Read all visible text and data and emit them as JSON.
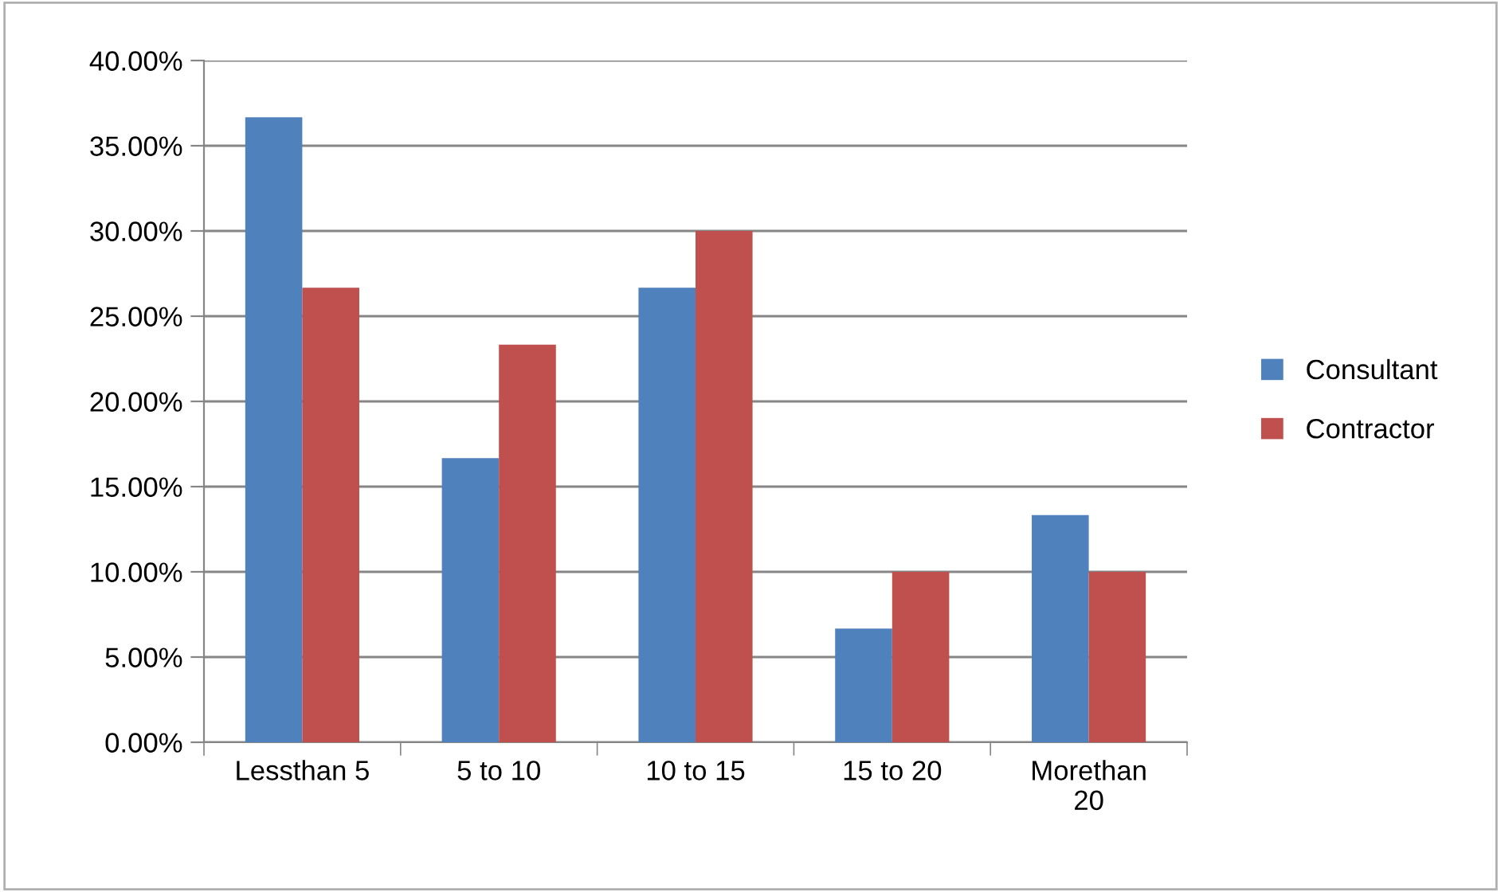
{
  "chart_data": {
    "type": "bar",
    "categories": [
      "Lessthan 5",
      "5 to 10",
      "10 to 15",
      "15 to 20",
      "Morethan\n20"
    ],
    "series": [
      {
        "name": "Consultant",
        "color": "#4f81bd",
        "values": [
          36.67,
          16.67,
          26.67,
          6.67,
          13.33
        ]
      },
      {
        "name": "Contractor",
        "color": "#c0504d",
        "values": [
          26.67,
          23.33,
          30,
          10,
          10
        ]
      }
    ],
    "ylim": [
      0,
      40
    ],
    "yticks": [
      {
        "value": 0,
        "label": "0.00%"
      },
      {
        "value": 5,
        "label": "5.00%"
      },
      {
        "value": 10,
        "label": "10.00%"
      },
      {
        "value": 15,
        "label": "15.00%"
      },
      {
        "value": 20,
        "label": "20.00%"
      },
      {
        "value": 25,
        "label": "25.00%"
      },
      {
        "value": 30,
        "label": "30.00%"
      },
      {
        "value": 35,
        "label": "35.00%"
      },
      {
        "value": 40,
        "label": "40.00%"
      }
    ],
    "grid": "y",
    "legend": "right"
  }
}
